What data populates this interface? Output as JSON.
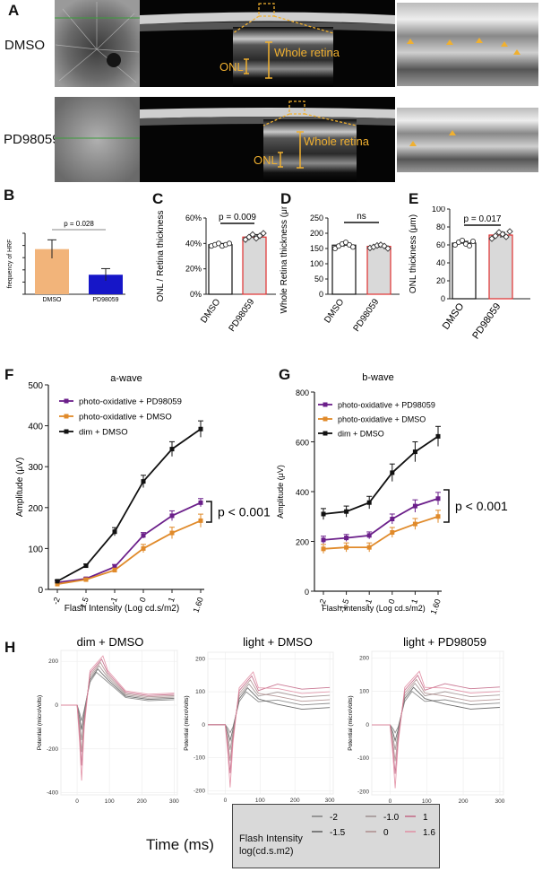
{
  "panels": {
    "A": {
      "label": "A",
      "rows": [
        {
          "name": "DMSO",
          "annot_whole": "Whole retina",
          "annot_onl": "ONL"
        },
        {
          "name": "PD98059",
          "annot_whole": "Whole retina",
          "annot_onl": "ONL"
        }
      ]
    },
    "B": {
      "label": "B",
      "ylabel": "frequency of HRF",
      "pvalue": "p = 0.028"
    },
    "C": {
      "label": "C",
      "ylabel": "ONL / Retina thickness",
      "pvalue": "p = 0.009"
    },
    "D": {
      "label": "D",
      "ylabel": "Whole Retina thickness (μm)",
      "pvalue": "ns"
    },
    "E": {
      "label": "E",
      "ylabel": "ONL thickness (μm)",
      "pvalue": "p = 0.017"
    },
    "F": {
      "label": "F",
      "pvalue": "p < 0.001"
    },
    "G": {
      "label": "G",
      "pvalue": "p < 0.001"
    },
    "H": {
      "label": "H",
      "titles": [
        "dim + DMSO",
        "light + DMSO",
        "light + PD98059"
      ],
      "ylabel": "Potential (microVolts)",
      "xlabel": "Time (ms)",
      "legend_title": "Flash Intensity",
      "legend_unit": "log(cd.s.m2)",
      "legend_items": [
        "-2",
        "-1.5",
        "-1.0",
        "0",
        "1",
        "1.6"
      ],
      "legend_colors": [
        "#7a7a7a",
        "#555555",
        "#9a8a8a",
        "#aa8888",
        "#c06080",
        "#e08aa0"
      ]
    }
  },
  "chart_data": [
    {
      "id": "B",
      "type": "bar",
      "title": "",
      "categories": [
        "DMSO",
        "PD98059"
      ],
      "values": [
        1.85,
        0.8
      ],
      "errors": [
        0.38,
        0.25
      ],
      "colors": [
        "#f2b47a",
        "#1616c8"
      ],
      "ylabel": "frequency of HRF",
      "ylim": [
        0,
        2.5
      ],
      "yticks": [
        "",
        "",
        "",
        "",
        "",
        ""
      ],
      "grid": false
    },
    {
      "id": "C",
      "type": "bar",
      "title": "",
      "categories": [
        "DMSO",
        "PD98059"
      ],
      "values": [
        39,
        45
      ],
      "errors": [
        1,
        2
      ],
      "ylabel": "ONL / Retina thickness",
      "ylim": [
        0,
        60
      ],
      "yticks": [
        "0%",
        "20%",
        "40%",
        "60%"
      ],
      "points": [
        [
          38,
          39,
          40,
          38,
          39,
          40
        ],
        [
          43,
          45,
          47,
          44,
          46,
          48
        ]
      ]
    },
    {
      "id": "D",
      "type": "bar",
      "title": "",
      "categories": [
        "DMSO",
        "PD98059"
      ],
      "values": [
        161,
        157
      ],
      "errors": [
        6,
        4
      ],
      "ylabel": "Whole Retina thickness (μm)",
      "ylim": [
        0,
        250
      ],
      "yticks": [
        "0",
        "50",
        "100",
        "150",
        "200",
        "250"
      ],
      "points": [
        [
          150,
          158,
          165,
          170,
          162,
          155
        ],
        [
          152,
          155,
          160,
          162,
          158,
          150
        ]
      ]
    },
    {
      "id": "E",
      "type": "bar",
      "title": "",
      "categories": [
        "DMSO",
        "PD98059"
      ],
      "values": [
        62,
        71
      ],
      "errors": [
        2,
        3
      ],
      "ylabel": "ONL thickness (μm)",
      "ylim": [
        0,
        100
      ],
      "yticks": [
        "0",
        "20",
        "40",
        "60",
        "80",
        "100"
      ],
      "points": [
        [
          60,
          63,
          65,
          61,
          59,
          64
        ],
        [
          67,
          70,
          74,
          72,
          69,
          75
        ]
      ]
    },
    {
      "id": "F",
      "type": "line",
      "title": "a-wave",
      "x": [
        "-2",
        "-1.5",
        "-1",
        "0",
        "1",
        "1.60"
      ],
      "xlabel": "Flash Intensity (Log cd.s/m2)",
      "ylabel": "Amplitude (μV)",
      "ylim": [
        0,
        500
      ],
      "yticks": [
        "0",
        "100",
        "200",
        "300",
        "400",
        "500"
      ],
      "series": [
        {
          "name": "photo-oxidative + PD98059",
          "color": "#6b1f8a",
          "values": [
            17,
            26,
            55,
            132,
            180,
            212
          ],
          "errors": [
            3,
            3,
            6,
            7,
            12,
            10
          ]
        },
        {
          "name": "photo-oxidative + DMSO",
          "color": "#e08a2a",
          "values": [
            13,
            24,
            47,
            100,
            138,
            168
          ],
          "errors": [
            3,
            3,
            5,
            10,
            14,
            16
          ]
        },
        {
          "name": "dim + DMSO",
          "color": "#111111",
          "values": [
            20,
            58,
            141,
            264,
            343,
            392
          ],
          "errors": [
            3,
            4,
            10,
            15,
            18,
            20
          ]
        }
      ]
    },
    {
      "id": "G",
      "type": "line",
      "title": "b-wave",
      "x": [
        "-2",
        "-1.5",
        "-1",
        "0",
        "1",
        "1.60"
      ],
      "xlabel": "Flash Intensity (Log cd.s/m2)",
      "ylabel": "Amplitude (μV)",
      "ylim": [
        0,
        800
      ],
      "yticks": [
        "0",
        "200",
        "400",
        "600",
        "800"
      ],
      "series": [
        {
          "name": "photo-oxidative + PD98059",
          "color": "#6b1f8a",
          "values": [
            206,
            214,
            224,
            290,
            342,
            372
          ],
          "errors": [
            15,
            14,
            14,
            20,
            25,
            25
          ]
        },
        {
          "name": "photo-oxidative + DMSO",
          "color": "#e08a2a",
          "values": [
            170,
            176,
            176,
            236,
            270,
            300
          ],
          "errors": [
            18,
            18,
            18,
            20,
            22,
            25
          ]
        },
        {
          "name": "dim + DMSO",
          "color": "#111111",
          "values": [
            310,
            320,
            356,
            476,
            560,
            622
          ],
          "errors": [
            22,
            22,
            25,
            35,
            40,
            40
          ]
        }
      ]
    }
  ]
}
